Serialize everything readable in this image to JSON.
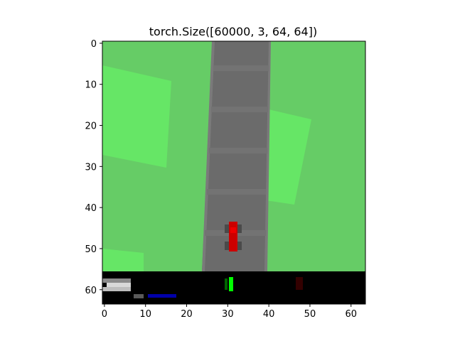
{
  "figure": {
    "title": "torch.Size([60000, 3, 64, 64])"
  },
  "axes": {
    "x_ticks": [
      "0",
      "10",
      "20",
      "30",
      "40",
      "50",
      "60"
    ],
    "y_ticks": [
      "0",
      "10",
      "20",
      "30",
      "40",
      "50",
      "60"
    ]
  },
  "colors": {
    "grass": "#66cc66",
    "grass_light": "#66e666",
    "road": "#6b6b6b",
    "road_stripe": "#737373",
    "road_edge": "#7a7a7a",
    "car": "#cc0000",
    "car_dark": "#4a4a4a",
    "hud_background": "#000000",
    "hud_white": "#d8d8d8",
    "hud_green": "#00ff00",
    "hud_blue": "#0000aa",
    "hud_dark_red": "#330000"
  }
}
